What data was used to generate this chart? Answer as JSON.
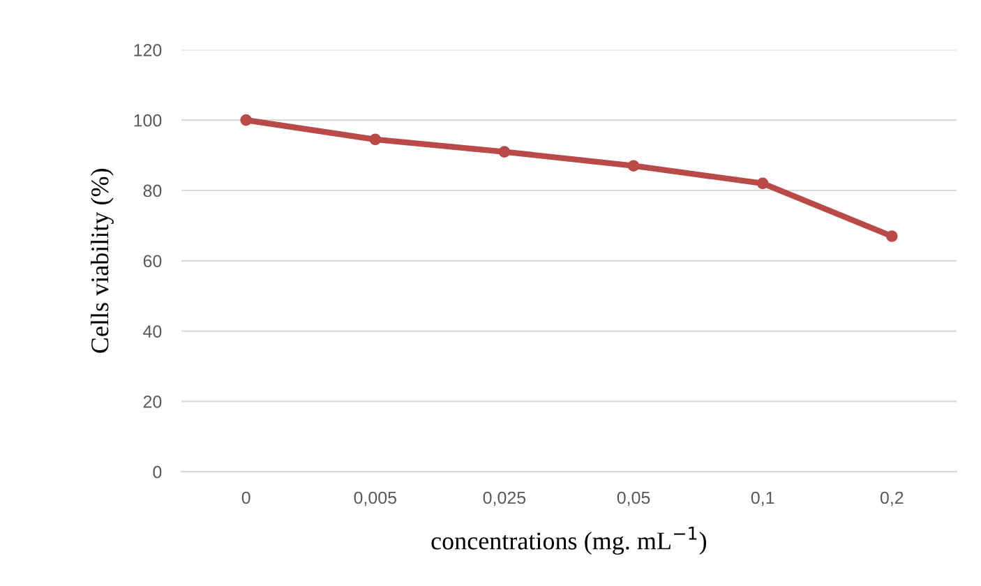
{
  "chart_data": {
    "type": "line",
    "xlabel": "concentrations (mg. mL$^{−1}$)",
    "ylabel": "Cells viability (%)",
    "categories": [
      "0",
      "0,005",
      "0,025",
      "0,05",
      "0,1",
      "0,2"
    ],
    "series": [
      {
        "color": "#b94a48",
        "values": [
          100,
          94.5,
          91,
          87,
          82,
          67
        ]
      }
    ],
    "ylim": [
      0,
      120
    ],
    "yticks": [
      0,
      20,
      40,
      60,
      80,
      100,
      120
    ],
    "grid": "y",
    "marker": "circle",
    "line_style": "solid"
  }
}
